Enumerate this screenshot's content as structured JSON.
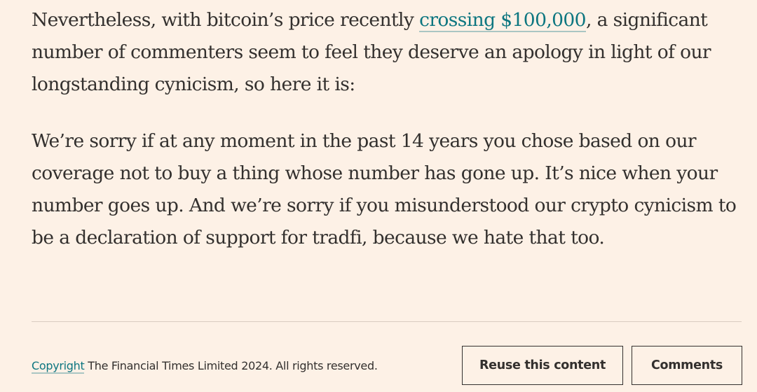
{
  "article": {
    "paragraph_1": {
      "before": "Nevertheless, with bitcoin’s price recently ",
      "link": "crossing $100,000",
      "after": ", a significant number of commenters seem to feel they deserve an apology in light of our longstanding cynicism, so here it is:"
    },
    "paragraph_2": "We’re sorry if at any moment in the past 14 years you chose based on our coverage not to buy a thing whose number has gone up. It’s nice when your number goes up. And we’re sorry if you misunderstood our crypto cynicism to be a declaration of support for tradfi, because we hate that too."
  },
  "footer": {
    "copyright_link": "Copyright",
    "copyright_text": " The Financial Times Limited 2024. All rights reserved.",
    "reuse_button": "Reuse this content",
    "comments_button": "Comments"
  },
  "colors": {
    "background": "#FDF1E6",
    "text": "#33302E",
    "link": "#0D7680"
  }
}
